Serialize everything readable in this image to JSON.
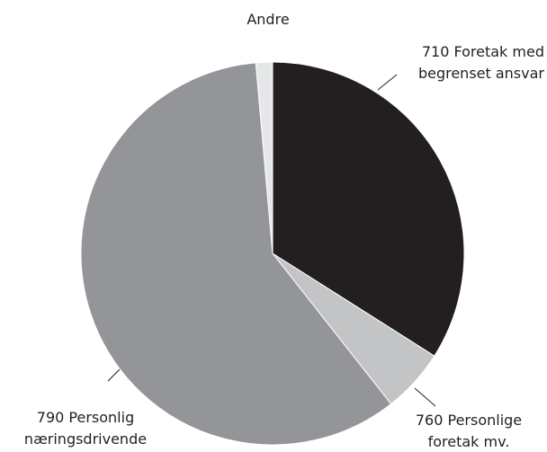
{
  "chart_data": {
    "type": "pie",
    "categories": [
      "710 Foretak med\nbegrenset ansvar",
      "760 Personlige\nforetak mv.",
      "790 Personlig\nnæringsdrivende",
      "Andre"
    ],
    "values": [
      34,
      5.4,
      59.2,
      1.4
    ],
    "colors": [
      "#231f20",
      "#c3c4c6",
      "#939598",
      "#e6e7e8"
    ]
  }
}
